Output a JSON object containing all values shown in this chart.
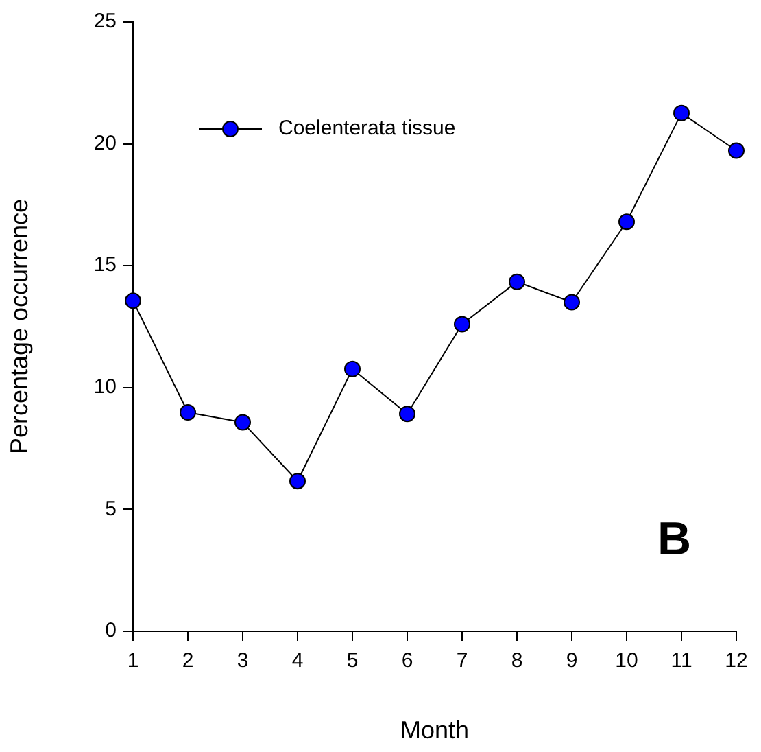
{
  "chart_data": {
    "type": "line",
    "xlabel": "Month",
    "ylabel": "Percentage occurrence",
    "x": [
      1,
      2,
      3,
      4,
      5,
      6,
      7,
      8,
      9,
      10,
      11,
      12
    ],
    "series": [
      {
        "name": "Coelenterata tissue",
        "color": "#0000ff",
        "values": [
          13.56,
          8.98,
          8.57,
          6.16,
          10.76,
          8.92,
          12.6,
          14.34,
          13.5,
          16.8,
          21.26,
          19.72
        ]
      }
    ],
    "xlim": [
      1,
      12
    ],
    "xticks": [
      1,
      2,
      3,
      4,
      5,
      6,
      7,
      8,
      9,
      10,
      11,
      12
    ],
    "ylim": [
      0,
      25
    ],
    "yticks": [
      0,
      5,
      10,
      15,
      20,
      25
    ],
    "grid": false,
    "legend": "top left",
    "marker": "circle",
    "line_style": "solid",
    "annotations": [
      "B"
    ]
  }
}
